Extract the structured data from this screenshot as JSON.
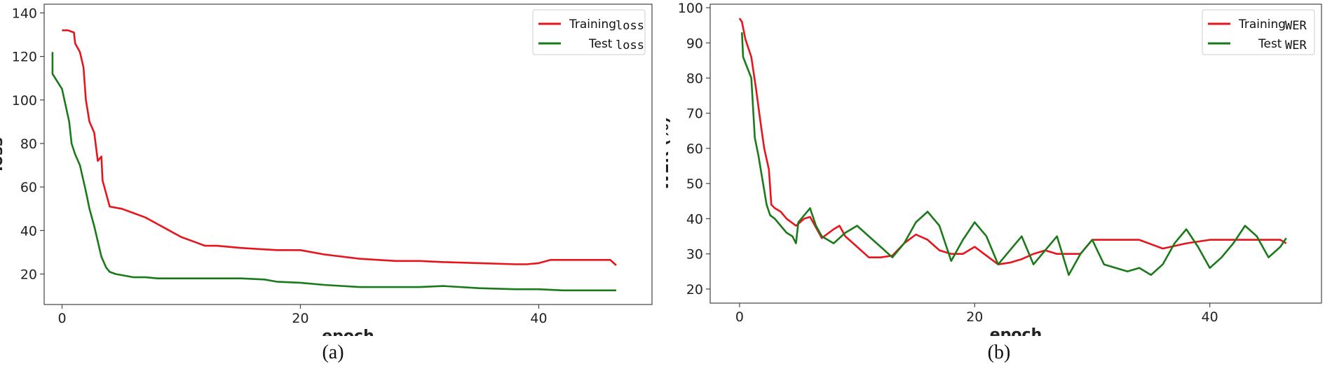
{
  "chart_data": [
    {
      "type": "line",
      "caption": "(a)",
      "xlabel": "epoch",
      "ylabel": "loss",
      "xlim": [
        -1.5,
        49.5
      ],
      "ylim": [
        6,
        144
      ],
      "xticks": [
        0,
        20,
        40
      ],
      "yticks": [
        20,
        40,
        60,
        80,
        100,
        120,
        140
      ],
      "legend_position": "top-right",
      "series": [
        {
          "name": "Training",
          "legend_suffix": "loss",
          "color": "#e8141c",
          "x": [
            0,
            0.5,
            1,
            1.1,
            1.5,
            1.8,
            2,
            2.3,
            2.7,
            3,
            3.3,
            3.4,
            3.8,
            4,
            4.5,
            5,
            6,
            7,
            8,
            9,
            10,
            11,
            12,
            13,
            15,
            18,
            20,
            22,
            25,
            28,
            30,
            32,
            35,
            38,
            39,
            40,
            41,
            43,
            45,
            46,
            46.5
          ],
          "y": [
            132,
            132,
            131,
            126,
            122,
            115,
            100,
            90,
            85,
            72,
            74,
            63,
            55,
            51,
            50.5,
            50,
            48,
            46,
            43,
            40,
            37,
            35,
            33,
            33,
            32,
            31,
            31,
            29,
            27,
            26,
            26,
            25.5,
            25,
            24.5,
            24.5,
            25,
            26.5,
            26.5,
            26.5,
            26.5,
            24
          ]
        },
        {
          "name": "Test",
          "legend_suffix": "loss",
          "color": "#1a7a1a",
          "x": [
            -0.8,
            -0.8,
            0,
            0.6,
            0.8,
            1.1,
            1.5,
            2,
            2.3,
            2.7,
            3,
            3.3,
            3.7,
            4,
            4.5,
            5,
            6,
            7,
            8,
            10,
            12,
            15,
            17,
            18,
            20,
            22,
            25,
            28,
            30,
            32,
            35,
            38,
            40,
            42,
            45,
            46.5
          ],
          "y": [
            122,
            112,
            105,
            90,
            80,
            75,
            70,
            58,
            50,
            42,
            35,
            28,
            23,
            21,
            20,
            19.5,
            18.5,
            18.5,
            18,
            18,
            18,
            18,
            17.5,
            16.5,
            16,
            15,
            14,
            14,
            14,
            14.5,
            13.5,
            13,
            13,
            12.5,
            12.5,
            12.5
          ]
        }
      ]
    },
    {
      "type": "line",
      "caption": "(b)",
      "xlabel": "epoch",
      "ylabel": "WER (%)",
      "xlim": [
        -2.5,
        49.5
      ],
      "ylim": [
        16,
        101
      ],
      "xticks": [
        0,
        20,
        40
      ],
      "yticks": [
        20,
        30,
        40,
        50,
        60,
        70,
        80,
        90,
        100
      ],
      "legend_position": "top-right",
      "series": [
        {
          "name": "Training",
          "legend_suffix": "WER",
          "color": "#e8141c",
          "x": [
            0,
            0.2,
            0.5,
            1,
            1.4,
            1.8,
            2.1,
            2.5,
            2.7,
            3,
            3.5,
            4,
            4.8,
            5.5,
            6,
            7,
            8,
            8.5,
            9,
            10,
            11,
            12,
            13,
            14,
            15,
            16,
            17,
            18,
            19,
            20,
            21,
            22,
            23,
            24,
            25,
            26,
            27,
            28,
            29,
            30,
            32,
            34,
            36,
            38,
            40,
            42,
            44,
            46,
            46.5
          ],
          "y": [
            97,
            96,
            91,
            86,
            77,
            67,
            60,
            54,
            44,
            43,
            42,
            40,
            38,
            40,
            40.5,
            34.5,
            37,
            38,
            35,
            32,
            29,
            29,
            29.5,
            33,
            35.5,
            34,
            31,
            30,
            30,
            32,
            29.5,
            27,
            27.5,
            28.5,
            30,
            31,
            30,
            30,
            30,
            34,
            34,
            34,
            31.5,
            33,
            34,
            34,
            34,
            34,
            33
          ]
        },
        {
          "name": "Test",
          "legend_suffix": "WER",
          "color": "#1a7a1a",
          "x": [
            0.2,
            0.3,
            1,
            1.3,
            1.6,
            2,
            2.3,
            2.6,
            3,
            3.5,
            4,
            4.5,
            4.8,
            5,
            5.5,
            6,
            6.5,
            7,
            8,
            9,
            10,
            11,
            12,
            13,
            14,
            15,
            16,
            17,
            18,
            19,
            20,
            21,
            22,
            23,
            24,
            25,
            26,
            27,
            28,
            29,
            30,
            31,
            32,
            33,
            34,
            35,
            36,
            37,
            38,
            39,
            40,
            41,
            42,
            43,
            44,
            45,
            46,
            46.5
          ],
          "y": [
            93,
            86,
            80,
            63,
            58,
            50,
            44,
            41,
            40,
            38,
            36,
            35,
            33,
            39,
            41,
            43,
            38,
            35,
            33,
            36,
            38,
            35,
            32,
            29,
            33,
            39,
            42,
            38,
            28,
            34,
            39,
            35,
            27,
            31,
            35,
            27,
            31,
            35,
            24,
            30,
            34,
            27,
            26,
            25,
            26,
            24,
            27,
            33,
            37,
            32,
            26,
            29,
            33,
            38,
            35,
            29,
            32,
            34.5
          ]
        }
      ]
    }
  ]
}
